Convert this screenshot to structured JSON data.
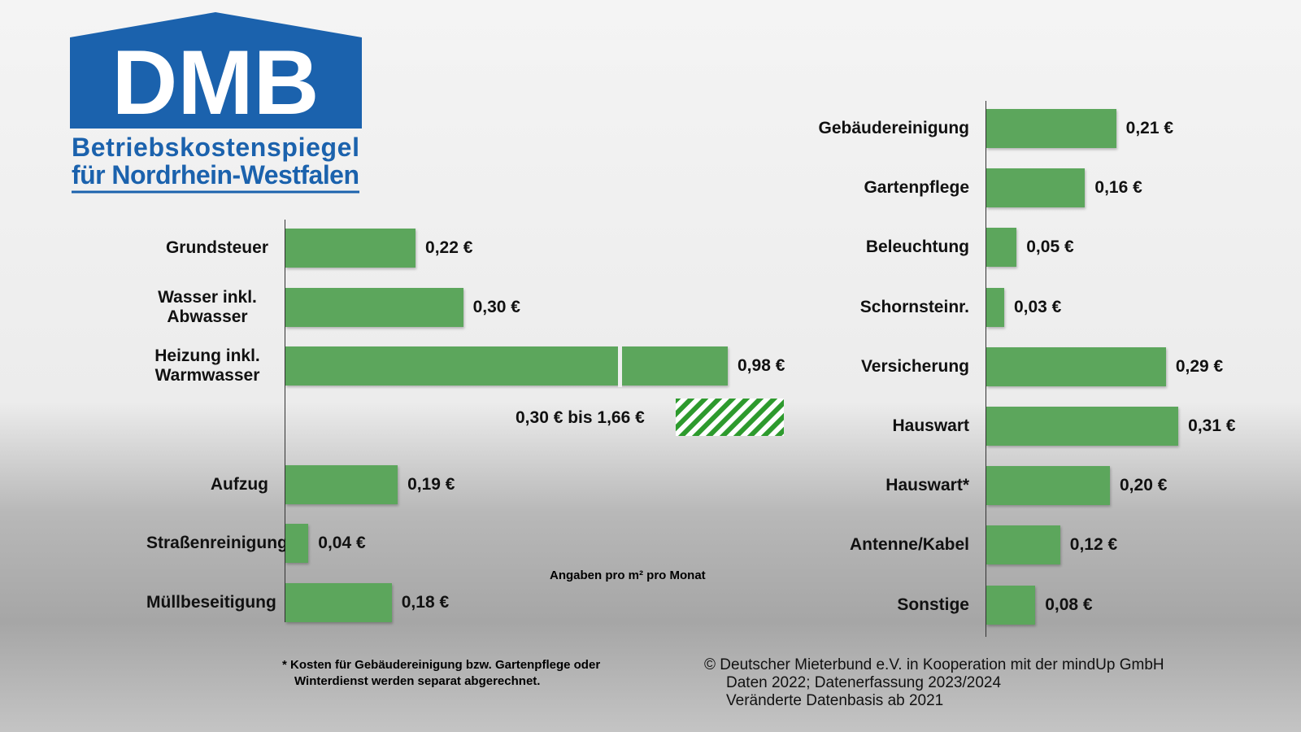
{
  "logo": {
    "name": "DMB",
    "line1": "Betriebskostenspiegel",
    "line2": "für Nordrhein-Westfalen"
  },
  "chart_data": [
    {
      "type": "hbar",
      "categories": [
        "Grundsteuer",
        "Wasser inkl. Abwasser",
        "Heizung inkl. Warmwasser",
        "Aufzug",
        "Straßenreinigung",
        "Müllbeseitigung"
      ],
      "values": [
        0.22,
        0.3,
        0.98,
        0.19,
        0.04,
        0.18
      ],
      "value_labels": [
        "0,22 €",
        "0,30 €",
        "0,98 €",
        "0,19 €",
        "0,04 €",
        "0,18 €"
      ],
      "color": "#5ca65c",
      "annotations": [
        "0,30 € bis 1,66 €",
        "Angaben pro m² pro Monat"
      ]
    },
    {
      "type": "hbar",
      "categories": [
        "Gebäudereinigung",
        "Gartenpflege",
        "Beleuchtung",
        "Schornsteinr.",
        "Versicherung",
        "Hauswart",
        "Hauswart*",
        "Antenne/Kabel",
        "Sonstige"
      ],
      "values": [
        0.21,
        0.16,
        0.05,
        0.03,
        0.29,
        0.31,
        0.2,
        0.12,
        0.08
      ],
      "value_labels": [
        "0,21 €",
        "0,16 €",
        "0,05 €",
        "0,03 €",
        "0,29 €",
        "0,31 €",
        "0,20 €",
        "0,12 €",
        "0,08 €"
      ],
      "color": "#5ca65c"
    }
  ],
  "footnote": [
    "* Kosten für Gebäudereinigung bzw. Gartenpflege oder",
    "Winterdienst werden separat abgerechnet."
  ],
  "source": [
    "© Deutscher Mieterbund e.V. in Kooperation mit der mindUp GmbH",
    "Daten 2022; Datenerfassung 2023/2024",
    "Veränderte Datenbasis ab 2021"
  ]
}
